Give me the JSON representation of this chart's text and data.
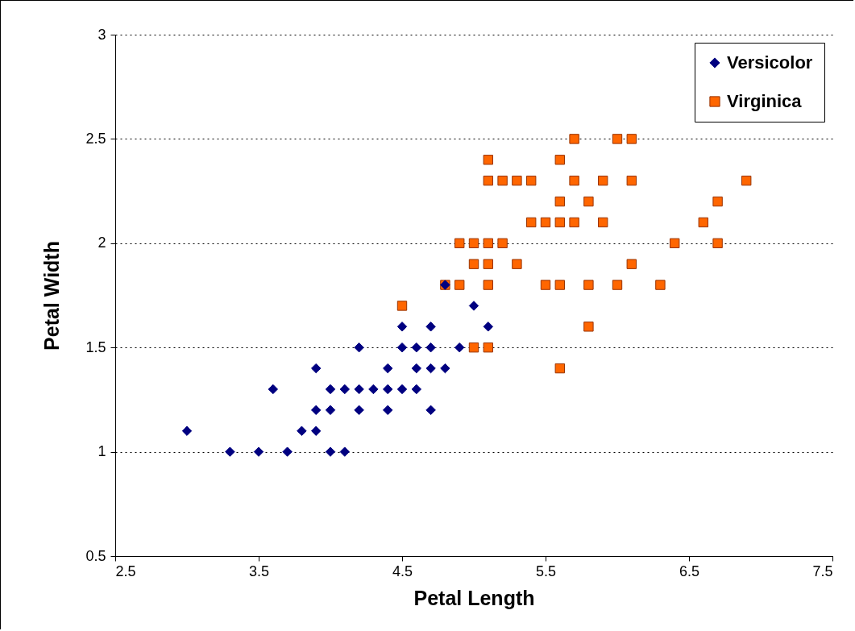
{
  "chart_data": {
    "type": "scatter",
    "xlabel": "Petal Length",
    "ylabel": "Petal Width",
    "xlim": [
      2.5,
      7.5
    ],
    "xticks": [
      2.5,
      3.5,
      4.5,
      5.5,
      6.5,
      7.5
    ],
    "ylim": [
      0.5,
      3
    ],
    "yticks": [
      0.5,
      1,
      1.5,
      2,
      2.5,
      3
    ],
    "grid": "y",
    "legend": "top right",
    "series": [
      {
        "name": "Versicolor",
        "color": "#000080",
        "marker": "diamond",
        "x": [
          3.0,
          3.3,
          3.5,
          3.7,
          3.6,
          3.8,
          3.9,
          3.9,
          3.9,
          4.0,
          4.0,
          4.0,
          4.1,
          4.1,
          4.2,
          4.2,
          4.2,
          4.3,
          4.4,
          4.4,
          4.4,
          4.5,
          4.5,
          4.5,
          4.6,
          4.6,
          4.6,
          4.7,
          4.7,
          4.7,
          4.7,
          4.8,
          4.8,
          4.9,
          5.0,
          5.1
        ],
        "values": [
          1.1,
          1.0,
          1.0,
          1.0,
          1.3,
          1.1,
          1.1,
          1.4,
          1.2,
          1.3,
          1.2,
          1.0,
          1.3,
          1.0,
          1.5,
          1.3,
          1.2,
          1.3,
          1.4,
          1.3,
          1.2,
          1.6,
          1.5,
          1.3,
          1.5,
          1.4,
          1.3,
          1.6,
          1.5,
          1.4,
          1.2,
          1.4,
          1.8,
          1.5,
          1.7,
          1.6
        ]
      },
      {
        "name": "Virginica",
        "color": "#ff6600",
        "marker": "square",
        "x": [
          5.7,
          6.0,
          6.1,
          5.1,
          5.6,
          5.1,
          5.2,
          5.3,
          5.4,
          5.7,
          5.9,
          6.1,
          6.9,
          5.6,
          5.8,
          6.7,
          5.4,
          5.5,
          5.6,
          5.7,
          5.9,
          6.6,
          4.9,
          5.0,
          5.1,
          5.2,
          6.4,
          6.7,
          5.0,
          5.1,
          5.3,
          6.1,
          4.8,
          4.9,
          5.1,
          5.5,
          5.6,
          5.8,
          6.0,
          6.3,
          4.5,
          5.8,
          5.0,
          5.1,
          5.6
        ],
        "values": [
          2.5,
          2.5,
          2.5,
          2.4,
          2.4,
          2.3,
          2.3,
          2.3,
          2.3,
          2.3,
          2.3,
          2.3,
          2.3,
          2.2,
          2.2,
          2.2,
          2.1,
          2.1,
          2.1,
          2.1,
          2.1,
          2.1,
          2.0,
          2.0,
          2.0,
          2.0,
          2.0,
          2.0,
          1.9,
          1.9,
          1.9,
          1.9,
          1.8,
          1.8,
          1.8,
          1.8,
          1.8,
          1.8,
          1.8,
          1.8,
          1.7,
          1.6,
          1.5,
          1.5,
          1.4
        ]
      }
    ]
  }
}
